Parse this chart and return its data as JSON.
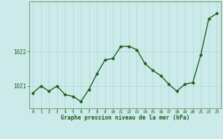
{
  "x": [
    0,
    1,
    2,
    3,
    4,
    5,
    6,
    7,
    8,
    9,
    10,
    11,
    12,
    13,
    14,
    15,
    16,
    17,
    18,
    19,
    20,
    21,
    22,
    23
  ],
  "y": [
    1020.8,
    1021.0,
    1020.85,
    1021.0,
    1020.75,
    1020.7,
    1020.55,
    1020.9,
    1021.35,
    1021.75,
    1021.8,
    1022.15,
    1022.15,
    1022.05,
    1021.65,
    1021.45,
    1021.3,
    1021.05,
    1020.85,
    1021.05,
    1021.1,
    1021.9,
    1022.95,
    1023.1
  ],
  "line_color": "#1a5e1a",
  "marker_color": "#1a5e1a",
  "bg_color": "#cceaea",
  "grid_color": "#aad4d4",
  "xlabel": "Graphe pression niveau de la mer (hPa)",
  "xlabel_color": "#1a5e1a",
  "tick_color": "#1a5e1a",
  "ytick_labels": [
    "1021",
    "1022"
  ],
  "ytick_values": [
    1021.0,
    1022.0
  ],
  "ylim": [
    1020.35,
    1023.45
  ],
  "xlim": [
    -0.5,
    23.5
  ],
  "spine_color": "#5a8a5a",
  "marker_size": 2.5,
  "line_width": 1.0,
  "font_family": "monospace",
  "xtick_fontsize": 4.5,
  "ytick_fontsize": 5.5,
  "xlabel_fontsize": 5.8
}
